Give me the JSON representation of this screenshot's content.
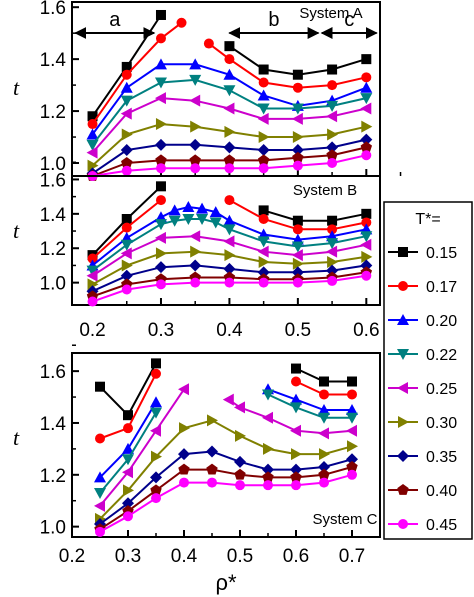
{
  "chart_data": {
    "type": "line",
    "xlabel": "ρ*",
    "ylabel": "t",
    "legend": {
      "title": "T*=",
      "placement": "right",
      "entries": [
        "0.15",
        "0.17",
        "0.20",
        "0.22",
        "0.25",
        "0.30",
        "0.35",
        "0.40",
        "0.45"
      ]
    },
    "series_style": [
      {
        "name": "0.15",
        "color": "#000000",
        "marker": "square"
      },
      {
        "name": "0.17",
        "color": "#ff0000",
        "marker": "circle"
      },
      {
        "name": "0.20",
        "color": "#0000ff",
        "marker": "triangle-up"
      },
      {
        "name": "0.22",
        "color": "#008080",
        "marker": "triangle-down"
      },
      {
        "name": "0.25",
        "color": "#cc00cc",
        "marker": "triangle-left"
      },
      {
        "name": "0.30",
        "color": "#808000",
        "marker": "triangle-right"
      },
      {
        "name": "0.35",
        "color": "#00008b",
        "marker": "diamond"
      },
      {
        "name": "0.40",
        "color": "#800000",
        "marker": "pentagon"
      },
      {
        "name": "0.45",
        "color": "#ff00ff",
        "marker": "circle"
      }
    ],
    "panels": [
      {
        "label": "System A",
        "xlim": [
          0.17,
          0.62
        ],
        "ylim": [
          0.95,
          1.62
        ],
        "yticks": [
          "1.0",
          "1.2",
          "1.4",
          "1.6"
        ],
        "regions": [
          {
            "label": "a",
            "from": 0.175,
            "to": 0.29
          },
          {
            "label": "b",
            "from": 0.4,
            "to": 0.53
          },
          {
            "label": "c",
            "from": 0.535,
            "to": 0.615
          }
        ],
        "series": [
          {
            "name": "0.15",
            "x": [
              0.2,
              0.25,
              0.3
            ],
            "y": [
              1.18,
              1.37,
              1.57
            ],
            "x2": [
              0.4,
              0.45,
              0.5,
              0.55,
              0.6
            ],
            "y2": [
              1.45,
              1.36,
              1.34,
              1.36,
              1.4
            ]
          },
          {
            "name": "0.17",
            "x": [
              0.2,
              0.25,
              0.3,
              0.33
            ],
            "y": [
              1.15,
              1.34,
              1.48,
              1.54
            ],
            "x2": [
              0.37,
              0.4,
              0.45,
              0.5,
              0.55,
              0.6
            ],
            "y2": [
              1.46,
              1.4,
              1.31,
              1.29,
              1.3,
              1.33
            ]
          },
          {
            "name": "0.20",
            "x": [
              0.2,
              0.25,
              0.3,
              0.35,
              0.4,
              0.45,
              0.5,
              0.55,
              0.6
            ],
            "y": [
              1.11,
              1.29,
              1.38,
              1.38,
              1.34,
              1.26,
              1.22,
              1.24,
              1.29
            ]
          },
          {
            "name": "0.22",
            "x": [
              0.2,
              0.25,
              0.3,
              0.35,
              0.4,
              0.45,
              0.5,
              0.55,
              0.6
            ],
            "y": [
              1.07,
              1.24,
              1.31,
              1.32,
              1.28,
              1.21,
              1.21,
              1.22,
              1.25
            ]
          },
          {
            "name": "0.25",
            "x": [
              0.2,
              0.25,
              0.3,
              0.35,
              0.4,
              0.45,
              0.5,
              0.55,
              0.6
            ],
            "y": [
              1.04,
              1.19,
              1.25,
              1.24,
              1.21,
              1.17,
              1.17,
              1.18,
              1.21
            ]
          },
          {
            "name": "0.30",
            "x": [
              0.2,
              0.25,
              0.3,
              0.35,
              0.4,
              0.45,
              0.5,
              0.55,
              0.6
            ],
            "y": [
              0.99,
              1.11,
              1.15,
              1.14,
              1.12,
              1.1,
              1.1,
              1.11,
              1.14
            ]
          },
          {
            "name": "0.35",
            "x": [
              0.2,
              0.25,
              0.3,
              0.35,
              0.4,
              0.45,
              0.5,
              0.55,
              0.6
            ],
            "y": [
              0.96,
              1.05,
              1.07,
              1.07,
              1.06,
              1.05,
              1.05,
              1.06,
              1.09
            ]
          },
          {
            "name": "0.40",
            "x": [
              0.2,
              0.25,
              0.3,
              0.35,
              0.4,
              0.45,
              0.5,
              0.55,
              0.6
            ],
            "y": [
              0.95,
              1.0,
              1.01,
              1.01,
              1.01,
              1.01,
              1.02,
              1.03,
              1.06
            ]
          },
          {
            "name": "0.45",
            "x": [
              0.2,
              0.25,
              0.3,
              0.35,
              0.4,
              0.45,
              0.5,
              0.55,
              0.6
            ],
            "y": [
              0.95,
              0.97,
              0.98,
              0.98,
              0.98,
              0.98,
              0.99,
              1.0,
              1.03
            ]
          }
        ]
      },
      {
        "label": "System B",
        "xlim": [
          0.17,
          0.62
        ],
        "ylim": [
          0.87,
          1.62
        ],
        "yticks": [
          "1.0",
          "1.2",
          "1.4",
          "1.6"
        ],
        "xticks": [
          "0.2",
          "0.3",
          "0.4",
          "0.5",
          "0.6"
        ],
        "series": [
          {
            "name": "0.15",
            "x": [
              0.2,
              0.25,
              0.3
            ],
            "y": [
              1.16,
              1.37,
              1.56
            ],
            "x2": [
              0.45,
              0.5,
              0.55,
              0.6
            ],
            "y2": [
              1.42,
              1.36,
              1.36,
              1.4
            ]
          },
          {
            "name": "0.17",
            "x": [
              0.2,
              0.25,
              0.3
            ],
            "y": [
              1.14,
              1.32,
              1.48
            ],
            "x2": [
              0.4,
              0.45,
              0.5,
              0.55,
              0.6
            ],
            "y2": [
              1.48,
              1.37,
              1.31,
              1.31,
              1.35
            ]
          },
          {
            "name": "0.20",
            "x": [
              0.2,
              0.25,
              0.3,
              0.32,
              0.34,
              0.36,
              0.38,
              0.4,
              0.45,
              0.5,
              0.55,
              0.6
            ],
            "y": [
              1.1,
              1.26,
              1.38,
              1.42,
              1.44,
              1.43,
              1.41,
              1.36,
              1.28,
              1.25,
              1.27,
              1.31
            ]
          },
          {
            "name": "0.22",
            "x": [
              0.2,
              0.25,
              0.3,
              0.32,
              0.34,
              0.36,
              0.38,
              0.4,
              0.45,
              0.5,
              0.55,
              0.6
            ],
            "y": [
              1.07,
              1.22,
              1.34,
              1.36,
              1.37,
              1.37,
              1.35,
              1.31,
              1.24,
              1.21,
              1.23,
              1.27
            ]
          },
          {
            "name": "0.25",
            "x": [
              0.2,
              0.25,
              0.3,
              0.35,
              0.4,
              0.45,
              0.5,
              0.55,
              0.6
            ],
            "y": [
              1.04,
              1.17,
              1.26,
              1.27,
              1.24,
              1.18,
              1.16,
              1.18,
              1.22
            ]
          },
          {
            "name": "0.30",
            "x": [
              0.2,
              0.25,
              0.3,
              0.35,
              0.4,
              0.45,
              0.5,
              0.55,
              0.6
            ],
            "y": [
              0.99,
              1.1,
              1.17,
              1.18,
              1.16,
              1.12,
              1.11,
              1.12,
              1.15
            ]
          },
          {
            "name": "0.35",
            "x": [
              0.2,
              0.25,
              0.3,
              0.35,
              0.4,
              0.45,
              0.5,
              0.55,
              0.6
            ],
            "y": [
              0.95,
              1.04,
              1.09,
              1.1,
              1.08,
              1.06,
              1.06,
              1.07,
              1.1
            ]
          },
          {
            "name": "0.40",
            "x": [
              0.2,
              0.25,
              0.3,
              0.35,
              0.4,
              0.45,
              0.5,
              0.55,
              0.6
            ],
            "y": [
              0.92,
              0.99,
              1.02,
              1.03,
              1.03,
              1.02,
              1.02,
              1.03,
              1.06
            ]
          },
          {
            "name": "0.45",
            "x": [
              0.2,
              0.25,
              0.3,
              0.35,
              0.4,
              0.45,
              0.5,
              0.55,
              0.6
            ],
            "y": [
              0.89,
              0.96,
              0.99,
              1.0,
              1.0,
              1.0,
              1.0,
              1.01,
              1.04
            ]
          }
        ]
      },
      {
        "label": "System C",
        "xlim": [
          0.2,
          0.75
        ],
        "ylim": [
          0.96,
          1.67
        ],
        "yticks": [
          "1.0",
          "1.2",
          "1.4",
          "1.6"
        ],
        "xticks": [
          "0.2",
          "0.3",
          "0.4",
          "0.5",
          "0.6",
          "0.7"
        ],
        "series": [
          {
            "name": "0.15",
            "x": [
              0.25,
              0.3,
              0.35
            ],
            "y": [
              1.54,
              1.43,
              1.63
            ],
            "x2": [
              0.6,
              0.65,
              0.7
            ],
            "y2": [
              1.61,
              1.56,
              1.56
            ]
          },
          {
            "name": "0.17",
            "x": [
              0.25,
              0.3,
              0.35
            ],
            "y": [
              1.34,
              1.38,
              1.59
            ],
            "x2": [
              0.6,
              0.65,
              0.7
            ],
            "y2": [
              1.56,
              1.51,
              1.51
            ]
          },
          {
            "name": "0.20",
            "x": [
              0.25,
              0.3,
              0.35
            ],
            "y": [
              1.19,
              1.3,
              1.48
            ],
            "x2": [
              0.55,
              0.6,
              0.65,
              0.7
            ],
            "y2": [
              1.53,
              1.49,
              1.45,
              1.45
            ]
          },
          {
            "name": "0.22",
            "x": [
              0.25,
              0.3,
              0.35
            ],
            "y": [
              1.13,
              1.26,
              1.44
            ],
            "x2": [
              0.55,
              0.6,
              0.65,
              0.7
            ],
            "y2": [
              1.51,
              1.46,
              1.42,
              1.42
            ]
          },
          {
            "name": "0.25",
            "x": [
              0.25,
              0.3,
              0.35,
              0.4
            ],
            "y": [
              1.08,
              1.21,
              1.37,
              1.53
            ],
            "x2": [
              0.48,
              0.5,
              0.55,
              0.6,
              0.65,
              0.7
            ],
            "y2": [
              1.49,
              1.46,
              1.42,
              1.37,
              1.36,
              1.37
            ]
          },
          {
            "name": "0.30",
            "x": [
              0.25,
              0.3,
              0.35,
              0.4,
              0.45,
              0.5,
              0.55,
              0.6,
              0.65,
              0.7
            ],
            "y": [
              1.03,
              1.14,
              1.27,
              1.38,
              1.41,
              1.35,
              1.3,
              1.28,
              1.28,
              1.31
            ]
          },
          {
            "name": "0.35",
            "x": [
              0.25,
              0.3,
              0.35,
              0.4,
              0.45,
              0.5,
              0.55,
              0.6,
              0.65,
              0.7
            ],
            "y": [
              1.01,
              1.09,
              1.19,
              1.28,
              1.29,
              1.25,
              1.22,
              1.22,
              1.23,
              1.26
            ]
          },
          {
            "name": "0.40",
            "x": [
              0.25,
              0.3,
              0.35,
              0.4,
              0.45,
              0.5,
              0.55,
              0.6,
              0.65,
              0.7
            ],
            "y": [
              0.99,
              1.06,
              1.14,
              1.22,
              1.22,
              1.2,
              1.19,
              1.19,
              1.2,
              1.23
            ]
          },
          {
            "name": "0.45",
            "x": [
              0.25,
              0.3,
              0.35,
              0.4,
              0.45,
              0.5,
              0.55,
              0.6,
              0.65,
              0.7
            ],
            "y": [
              0.98,
              1.04,
              1.11,
              1.17,
              1.17,
              1.16,
              1.16,
              1.16,
              1.17,
              1.2
            ]
          }
        ]
      }
    ]
  }
}
